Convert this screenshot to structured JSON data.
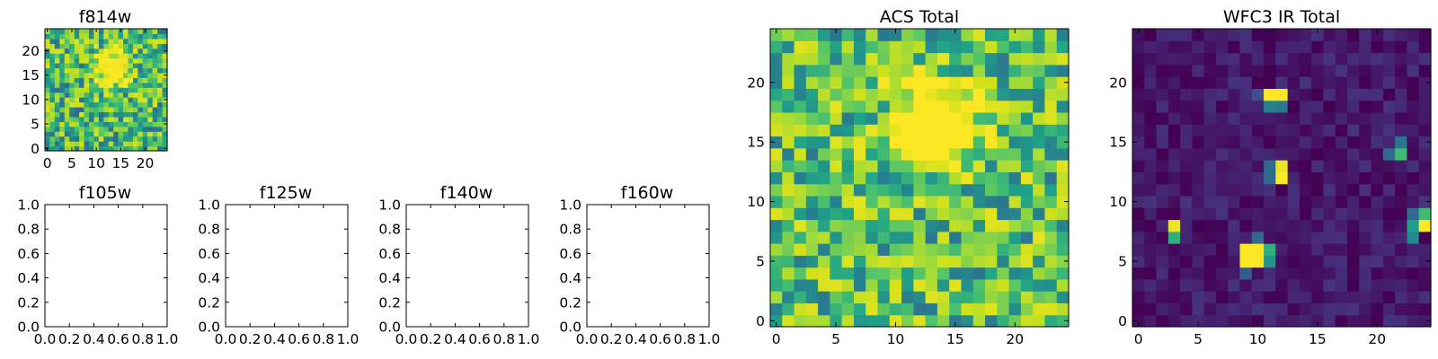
{
  "figure": {
    "colormap": "viridis",
    "axes": [
      {
        "id": "f814w",
        "title": "f814w",
        "kind": "image",
        "size": 25,
        "seed": 11,
        "xticks": [
          "0",
          "5",
          "10",
          "15",
          "20"
        ],
        "yticks": [
          "0",
          "5",
          "10",
          "15",
          "20"
        ],
        "bg": 0.6,
        "noise": 0.3,
        "sources": [
          [
            13.5,
            16.5,
            2.5,
            0.7
          ]
        ]
      },
      {
        "id": "f105w",
        "title": "f105w",
        "kind": "empty",
        "xticks": [
          "0.0",
          "0.2",
          "0.4",
          "0.6",
          "0.8",
          "1.0"
        ],
        "yticks": [
          "0.0",
          "0.2",
          "0.4",
          "0.6",
          "0.8",
          "1.0"
        ]
      },
      {
        "id": "f125w",
        "title": "f125w",
        "kind": "empty",
        "xticks": [
          "0.0",
          "0.2",
          "0.4",
          "0.6",
          "0.8",
          "1.0"
        ],
        "yticks": [
          "0.0",
          "0.2",
          "0.4",
          "0.6",
          "0.8",
          "1.0"
        ]
      },
      {
        "id": "f140w",
        "title": "f140w",
        "kind": "empty",
        "xticks": [
          "0.0",
          "0.2",
          "0.4",
          "0.6",
          "0.8",
          "1.0"
        ],
        "yticks": [
          "0.0",
          "0.2",
          "0.4",
          "0.6",
          "0.8",
          "1.0"
        ]
      },
      {
        "id": "f160w",
        "title": "f160w",
        "kind": "empty",
        "xticks": [
          "0.0",
          "0.2",
          "0.4",
          "0.6",
          "0.8",
          "1.0"
        ],
        "yticks": [
          "0.0",
          "0.2",
          "0.4",
          "0.6",
          "0.8",
          "1.0"
        ]
      },
      {
        "id": "acs-total",
        "title": "ACS Total",
        "kind": "image",
        "size": 25,
        "seed": 29,
        "xticks": [
          "0",
          "5",
          "10",
          "15",
          "20"
        ],
        "yticks": [
          "0",
          "5",
          "10",
          "15",
          "20"
        ],
        "bg": 0.64,
        "noise": 0.3,
        "sources": [
          [
            13.5,
            16.5,
            2.4,
            0.75
          ]
        ]
      },
      {
        "id": "wfc3-ir-total",
        "title": "WFC3 IR Total",
        "kind": "image",
        "size": 25,
        "seed": 47,
        "xticks": [
          "0",
          "5",
          "10",
          "15",
          "20"
        ],
        "yticks": [
          "0",
          "5",
          "10",
          "15",
          "20"
        ],
        "bg": 0.06,
        "noise": 0.07,
        "hot": [
          [
            11,
            19,
            1
          ],
          [
            12,
            19,
            1
          ],
          [
            11,
            18,
            0.38
          ],
          [
            12,
            18,
            0.35
          ],
          [
            10,
            19,
            0.22
          ],
          [
            12,
            12,
            1
          ],
          [
            12,
            13,
            0.95
          ],
          [
            11,
            12,
            0.3
          ],
          [
            11,
            13,
            0.3
          ],
          [
            9,
            5,
            1
          ],
          [
            10,
            5,
            1
          ],
          [
            9,
            6,
            1
          ],
          [
            10,
            6,
            1
          ],
          [
            11,
            6,
            0.55
          ],
          [
            11,
            5,
            0.45
          ],
          [
            10,
            7,
            0.3
          ],
          [
            9,
            4,
            0.25
          ],
          [
            3,
            8,
            0.95
          ],
          [
            3,
            7,
            0.55
          ],
          [
            24,
            8,
            1
          ],
          [
            24,
            9,
            0.6
          ],
          [
            23,
            8,
            0.5
          ],
          [
            23,
            7,
            0.4
          ],
          [
            23,
            9,
            0.3
          ],
          [
            22,
            14,
            0.6
          ],
          [
            22,
            15,
            0.35
          ],
          [
            21,
            14,
            0.3
          ]
        ]
      }
    ]
  },
  "chart_data": [
    {
      "type": "heatmap",
      "title": "f814w",
      "xlim": [
        -0.5,
        24.5
      ],
      "ylim": [
        -0.5,
        24.5
      ],
      "grid": false
    },
    {
      "type": "line",
      "title": "f105w",
      "xlim": [
        0.0,
        1.0
      ],
      "ylim": [
        0.0,
        1.0
      ],
      "series": []
    },
    {
      "type": "line",
      "title": "f125w",
      "xlim": [
        0.0,
        1.0
      ],
      "ylim": [
        0.0,
        1.0
      ],
      "series": []
    },
    {
      "type": "line",
      "title": "f140w",
      "xlim": [
        0.0,
        1.0
      ],
      "ylim": [
        0.0,
        1.0
      ],
      "series": []
    },
    {
      "type": "line",
      "title": "f160w",
      "xlim": [
        0.0,
        1.0
      ],
      "ylim": [
        0.0,
        1.0
      ],
      "series": []
    },
    {
      "type": "heatmap",
      "title": "ACS Total",
      "xlim": [
        -0.5,
        24.5
      ],
      "ylim": [
        -0.5,
        24.5
      ],
      "grid": false
    },
    {
      "type": "heatmap",
      "title": "WFC3 IR Total",
      "xlim": [
        -0.5,
        24.5
      ],
      "ylim": [
        -0.5,
        24.5
      ],
      "grid": false
    }
  ]
}
